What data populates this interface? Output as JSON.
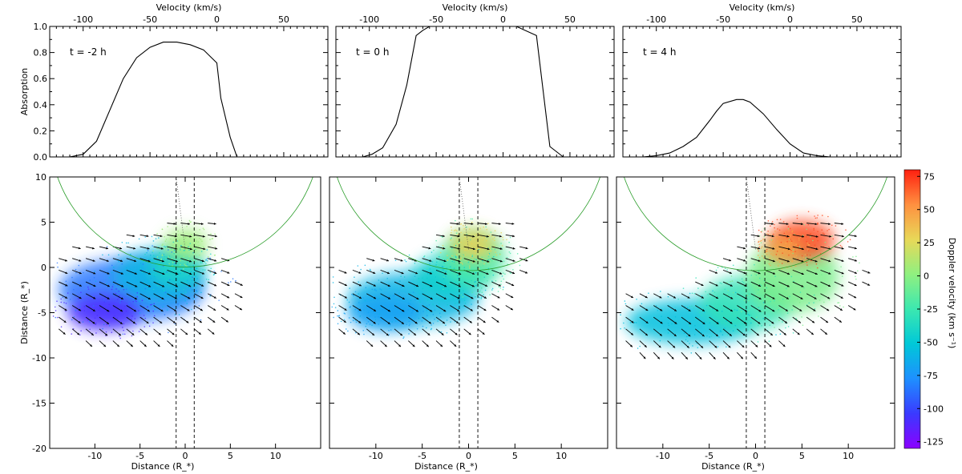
{
  "chart_data": [
    {
      "type": "line",
      "panel": "absorption-1",
      "annotation": "t = -2 h",
      "ylabel": "Absorption",
      "xlabel_top": "Velocity (km/s)",
      "xlim": [
        -125,
        83
      ],
      "ylim": [
        0,
        1.0
      ],
      "x_ticks": [
        "-100",
        "-50",
        "0",
        "50"
      ],
      "y_ticks": [
        "0.0",
        "0.2",
        "0.4",
        "0.6",
        "0.8",
        "1.0"
      ],
      "x": [
        -125,
        -110,
        -100,
        -90,
        -80,
        -70,
        -60,
        -50,
        -40,
        -30,
        -25,
        -20,
        -10,
        0,
        3,
        10,
        15,
        83
      ],
      "y": [
        0.0,
        0.0,
        0.02,
        0.12,
        0.36,
        0.6,
        0.76,
        0.84,
        0.88,
        0.88,
        0.87,
        0.86,
        0.82,
        0.72,
        0.45,
        0.15,
        0.0,
        0.0
      ]
    },
    {
      "type": "line",
      "panel": "absorption-2",
      "annotation": "t = 0 h",
      "xlabel_top": "Velocity (km/s)",
      "xlim": [
        -125,
        83
      ],
      "ylim": [
        0,
        1.0
      ],
      "x_ticks": [
        "-100",
        "-50",
        "0",
        "50"
      ],
      "x": [
        -125,
        -105,
        -98,
        -90,
        -80,
        -72,
        -65,
        -60,
        -55,
        -50,
        0,
        10,
        25,
        35,
        45,
        52,
        83
      ],
      "y": [
        0.0,
        0.0,
        0.02,
        0.07,
        0.25,
        0.55,
        0.93,
        0.97,
        1.0,
        1.0,
        1.0,
        1.0,
        0.93,
        0.08,
        0.0,
        0.0,
        0.0
      ]
    },
    {
      "type": "line",
      "panel": "absorption-3",
      "annotation": "t = 4 h",
      "xlabel_top": "Velocity (km/s)",
      "xlim": [
        -125,
        83
      ],
      "ylim": [
        0,
        1.0
      ],
      "x_ticks": [
        "-100",
        "-50",
        "0",
        "50"
      ],
      "x": [
        -125,
        -110,
        -100,
        -90,
        -80,
        -70,
        -60,
        -55,
        -50,
        -40,
        -35,
        -30,
        -20,
        -10,
        0,
        10,
        20,
        30,
        83
      ],
      "y": [
        0.0,
        0.0,
        0.01,
        0.03,
        0.08,
        0.15,
        0.28,
        0.35,
        0.41,
        0.44,
        0.44,
        0.42,
        0.33,
        0.21,
        0.1,
        0.03,
        0.01,
        0.0,
        0.0
      ]
    },
    {
      "type": "scatter",
      "panel": "map-1",
      "description_hidden": false,
      "xlabel": "Distance (R_*)",
      "ylabel": "Distance (R_*)",
      "xlim": [
        -15,
        15
      ],
      "ylim": [
        -20,
        10
      ],
      "x_ticks": [
        "-10",
        "-5",
        "0",
        "5",
        "10"
      ],
      "y_ticks": [
        "-20",
        "-15",
        "-10",
        "-5",
        "0",
        "5",
        "10"
      ],
      "guide_lines_x": [
        -1,
        1
      ],
      "arc": {
        "cx": 0,
        "cy": 15,
        "r": 15
      },
      "blobs": [
        {
          "x": -6,
          "y": -2.5,
          "rx": 8,
          "ry": 3.5,
          "v": -85
        },
        {
          "x": -3,
          "y": -1,
          "rx": 5,
          "ry": 3,
          "v": -60
        },
        {
          "x": -1,
          "y": 0,
          "rx": 3,
          "ry": 2,
          "v": -40
        },
        {
          "x": 0,
          "y": 2.5,
          "rx": 2.5,
          "ry": 1.8,
          "v": 5
        },
        {
          "x": -9,
          "y": -5,
          "rx": 4,
          "ry": 2,
          "v": -110
        }
      ]
    },
    {
      "type": "scatter",
      "panel": "map-2",
      "xlabel": "Distance (R_*)",
      "xlim": [
        -15,
        15
      ],
      "ylim": [
        -20,
        10
      ],
      "x_ticks": [
        "-10",
        "-5",
        "0",
        "5",
        "10"
      ],
      "guide_lines_x": [
        -1,
        1
      ],
      "arc": {
        "cx": 0,
        "cy": 15,
        "r": 15
      },
      "blobs": [
        {
          "x": -6,
          "y": -3.5,
          "rx": 7,
          "ry": 3,
          "v": -60
        },
        {
          "x": -2,
          "y": -1,
          "rx": 4,
          "ry": 2.5,
          "v": -45
        },
        {
          "x": 0.5,
          "y": 1,
          "rx": 3.5,
          "ry": 3,
          "v": -20
        },
        {
          "x": 0.5,
          "y": 2.5,
          "rx": 2.5,
          "ry": 1.8,
          "v": 30
        },
        {
          "x": -9,
          "y": -5,
          "rx": 4,
          "ry": 2,
          "v": -70
        }
      ]
    },
    {
      "type": "scatter",
      "panel": "map-3",
      "xlabel": "Distance (R_*)",
      "xlim": [
        -15,
        15
      ],
      "ylim": [
        -20,
        10
      ],
      "x_ticks": [
        "-10",
        "-5",
        "0",
        "5",
        "10"
      ],
      "guide_lines_x": [
        -1,
        1
      ],
      "arc": {
        "cx": 0,
        "cy": 15,
        "r": 15
      },
      "blobs": [
        {
          "x": -7,
          "y": -6,
          "rx": 7,
          "ry": 2.5,
          "v": -55
        },
        {
          "x": -1,
          "y": -4,
          "rx": 5,
          "ry": 3,
          "v": -30
        },
        {
          "x": 4,
          "y": -1,
          "rx": 5,
          "ry": 4,
          "v": -5
        },
        {
          "x": 5,
          "y": 3,
          "rx": 3.5,
          "ry": 2.2,
          "v": 70
        },
        {
          "x": 3,
          "y": 2,
          "rx": 2,
          "ry": 1.5,
          "v": 45
        }
      ]
    },
    {
      "type": "colorbar",
      "label": "Doppler velocity (km s⁻¹)",
      "range": [
        -130,
        80
      ],
      "ticks": [
        "75",
        "50",
        "25",
        "0",
        "-25",
        "-50",
        "-75",
        "-100",
        "-125"
      ],
      "tick_values": [
        75,
        50,
        25,
        0,
        -25,
        -50,
        -75,
        -100,
        -125
      ],
      "colors": [
        "#8b00ff",
        "#3a3aff",
        "#1e90ff",
        "#00c8d8",
        "#3ce8b0",
        "#90f080",
        "#e8d858",
        "#ff9040",
        "#ff2010"
      ]
    }
  ]
}
